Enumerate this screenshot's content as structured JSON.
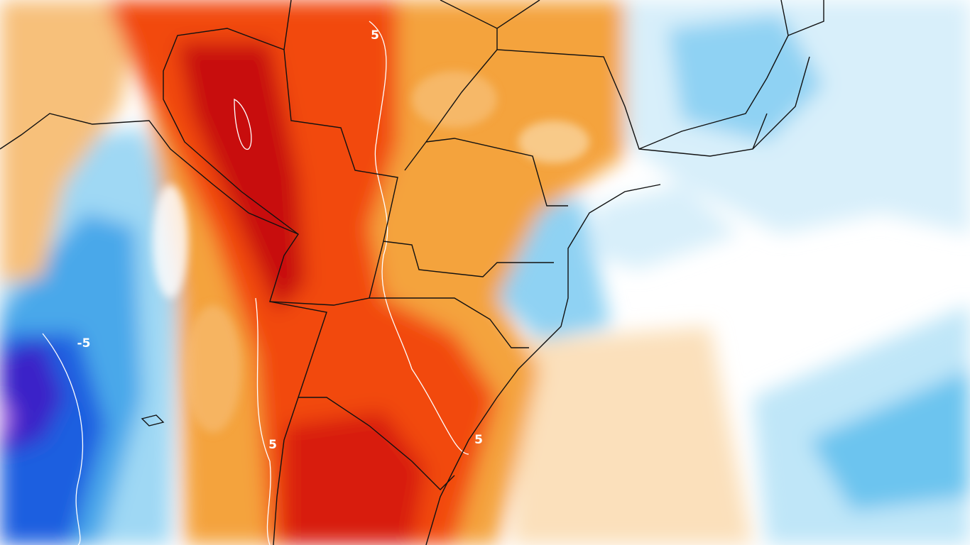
{
  "map": {
    "contour_labels": [
      "5",
      "-5",
      "5",
      "5"
    ]
  }
}
